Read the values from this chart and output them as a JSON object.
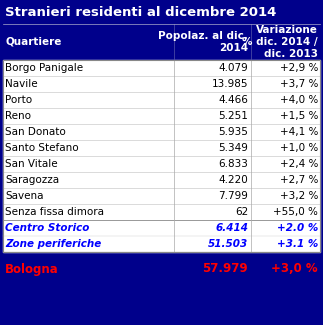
{
  "title": "Stranieri residenti al dicembre 2014",
  "outer_bg": "#00008B",
  "header_bg": "#00008B",
  "header_text_color": "#FFFFFF",
  "title_text_color": "#FFFFFF",
  "body_bg": "#FFFFFF",
  "col_headers": [
    "Quartiere",
    "Popolaz. al dic.\n2014",
    "Variazione\n% dic. 2014 /\ndic. 2013"
  ],
  "rows": [
    [
      "Borgo Panigale",
      "4.079",
      "+2,9 %"
    ],
    [
      "Navile",
      "13.985",
      "+3,7 %"
    ],
    [
      "Porto",
      "4.466",
      "+4,0 %"
    ],
    [
      "Reno",
      "5.251",
      "+1,5 %"
    ],
    [
      "San Donato",
      "5.935",
      "+4,1 %"
    ],
    [
      "Santo Stefano",
      "5.349",
      "+1,0 %"
    ],
    [
      "San Vitale",
      "6.833",
      "+2,4 %"
    ],
    [
      "Saragozza",
      "4.220",
      "+2,7 %"
    ],
    [
      "Savena",
      "7.799",
      "+3,2 %"
    ],
    [
      "Senza fissa dimora",
      "62",
      "+55,0 %"
    ]
  ],
  "summary_rows": [
    [
      "Centro Storico",
      "6.414",
      "+2.0 %"
    ],
    [
      "Zone periferiche",
      "51.503",
      "+3.1 %"
    ]
  ],
  "total_row": [
    "Bologna",
    "57.979",
    "+3,0 %"
  ],
  "summary_text_color": "#0000FF",
  "total_text_color": "#FF0000",
  "normal_text_color": "#000000",
  "font_size_title": 9.5,
  "font_size_header": 7.5,
  "font_size_body": 7.5,
  "font_size_summary": 7.5,
  "font_size_total": 8.5
}
